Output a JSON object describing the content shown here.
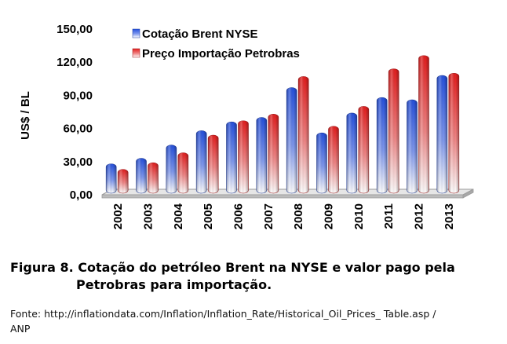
{
  "chart_data": {
    "type": "bar",
    "ylabel": "US$ / BL",
    "ylim": [
      0,
      150
    ],
    "yticks": [
      "0,00",
      "30,00",
      "60,00",
      "90,00",
      "120,00",
      "150,00"
    ],
    "categories": [
      "2002",
      "2003",
      "2004",
      "2005",
      "2006",
      "2007",
      "2008",
      "2009",
      "2010",
      "2011",
      "2012",
      "2013"
    ],
    "series": [
      {
        "name": "Cotação Brent NYSE",
        "color": "#2f5de0",
        "values": [
          28,
          33,
          45,
          58,
          66,
          70,
          97,
          56,
          74,
          88,
          86,
          108
        ]
      },
      {
        "name": "Preço Importação Petrobras",
        "color": "#e42a2a",
        "values": [
          23,
          29,
          38,
          54,
          67,
          73,
          107,
          62,
          80,
          114,
          126,
          110
        ]
      }
    ],
    "legend_position": "top-left",
    "grid": false
  },
  "caption": {
    "line1": "Figura 8. Cotação do petróleo Brent na NYSE e valor pago pela",
    "line2": "Petrobras para importação."
  },
  "source": {
    "line1": "Fonte: http://inflationdata.com/Inflation/Inflation_Rate/Historical_Oil_Prices_ Table.asp /",
    "line2": "ANP"
  }
}
